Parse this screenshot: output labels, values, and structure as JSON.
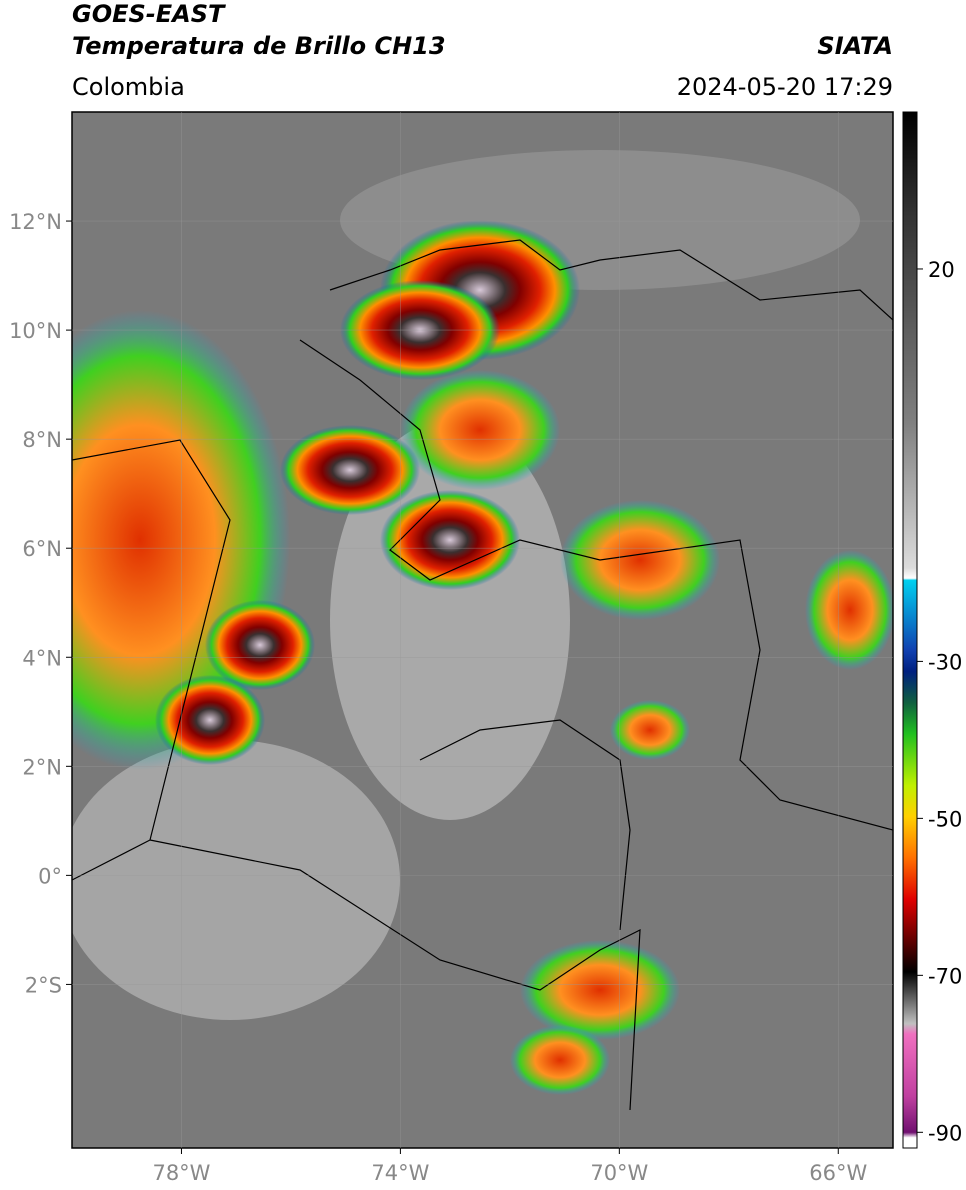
{
  "header": {
    "title": "GOES-EAST",
    "subtitle": "Temperatura de Brillo CH13",
    "source": "SIATA",
    "region": "Colombia",
    "datetime": "2024-05-20 17:29"
  },
  "map": {
    "xlim": [
      -80,
      -65
    ],
    "ylim": [
      -5,
      14
    ],
    "xticks": [
      {
        "value": -78,
        "label": "78°W"
      },
      {
        "value": -74,
        "label": "74°W"
      },
      {
        "value": -70,
        "label": "70°W"
      },
      {
        "value": -66,
        "label": "66°W"
      }
    ],
    "yticks": [
      {
        "value": 12,
        "label": "12°N"
      },
      {
        "value": 10,
        "label": "10°N"
      },
      {
        "value": 8,
        "label": "8°N"
      },
      {
        "value": 6,
        "label": "6°N"
      },
      {
        "value": 4,
        "label": "4°N"
      },
      {
        "value": 2,
        "label": "2°N"
      },
      {
        "value": 0,
        "label": "0°"
      },
      {
        "value": -2,
        "label": "2°S"
      }
    ]
  },
  "colorbar": {
    "lim": [
      -92,
      40
    ],
    "ticks": [
      20,
      -30,
      -50,
      -70,
      -90
    ]
  }
}
